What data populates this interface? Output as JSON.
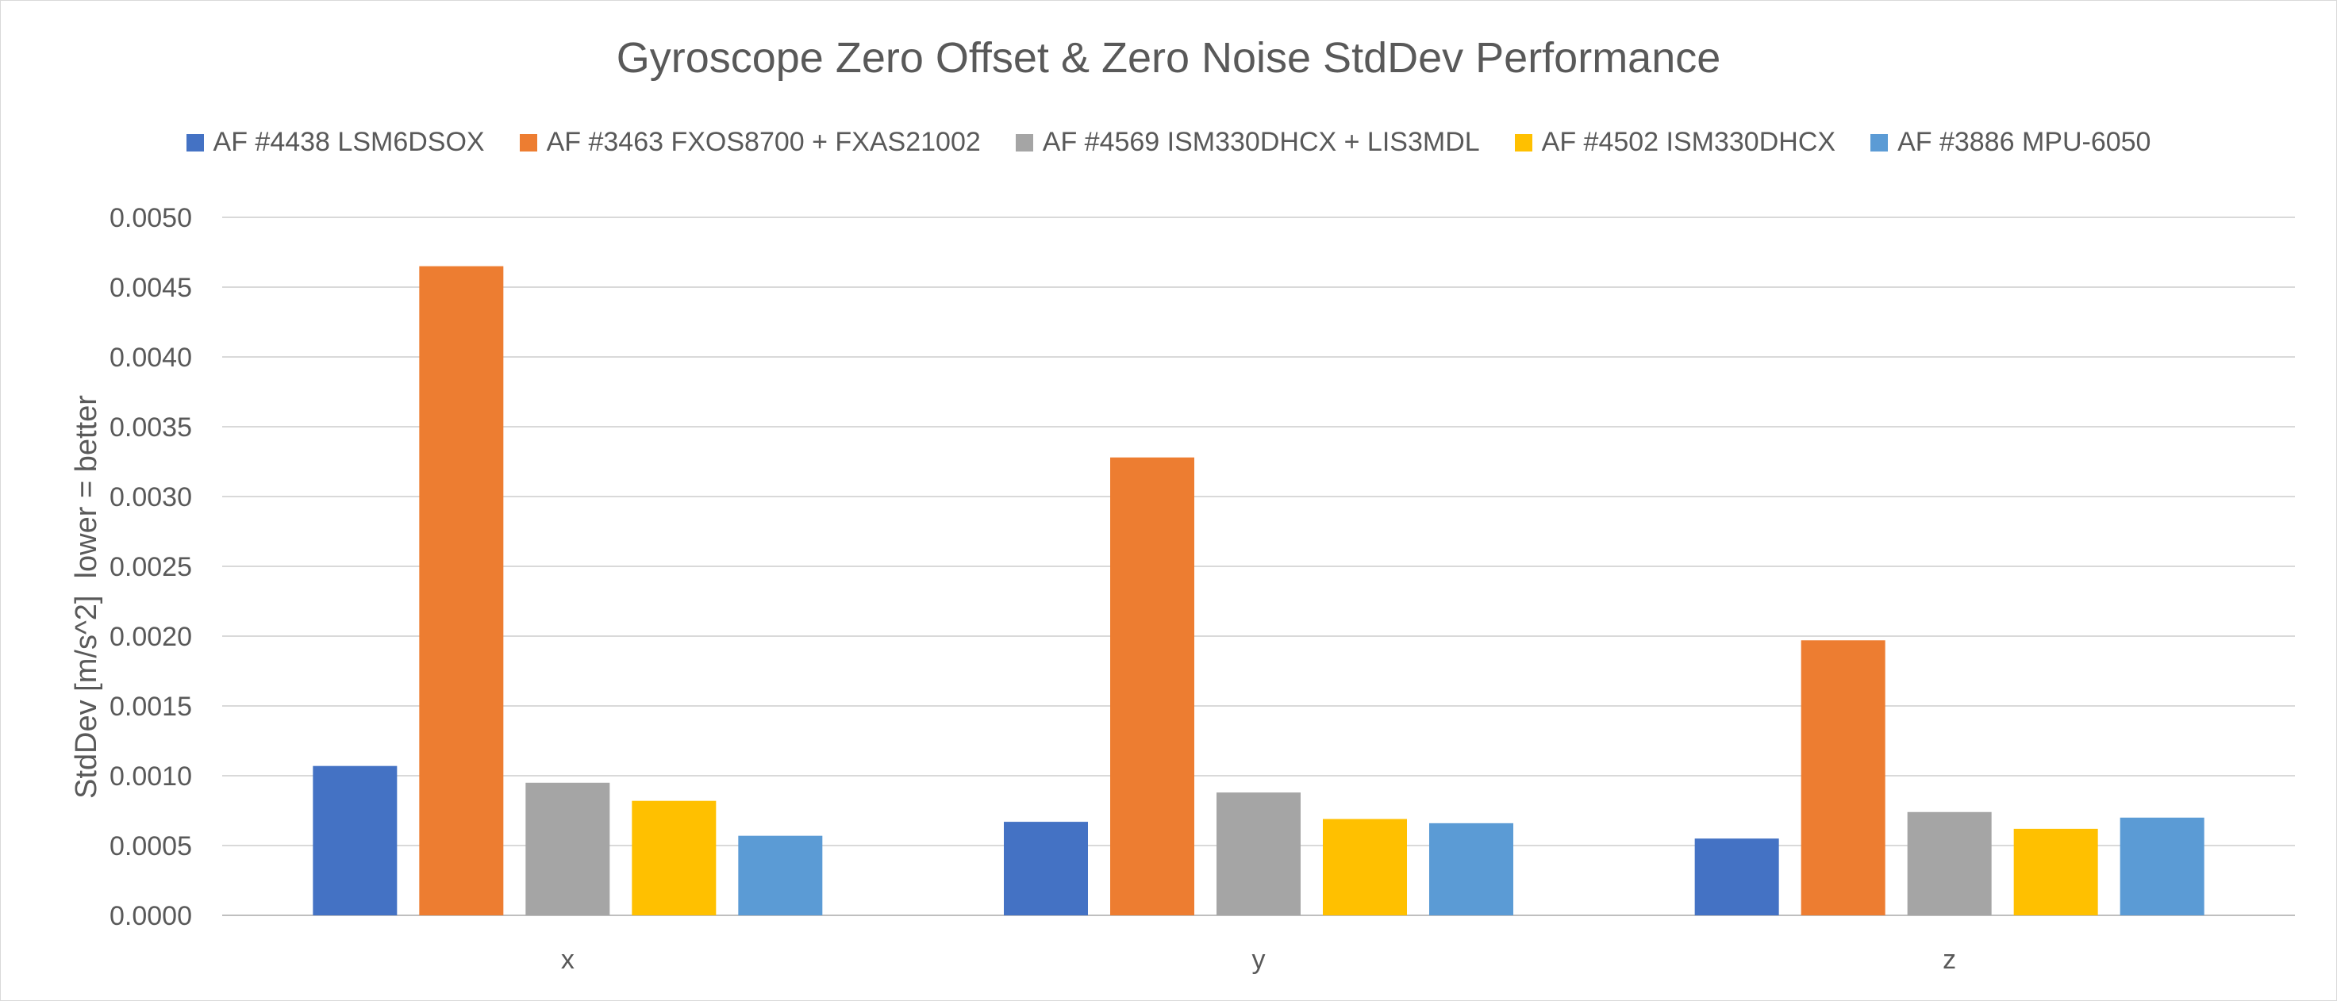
{
  "chart_data": {
    "type": "bar",
    "title": "Gyroscope Zero Offset & Zero Noise StdDev Performance",
    "xlabel": "",
    "ylabel": "StdDev [m/s^2]  lower = better",
    "categories": [
      "x",
      "y",
      "z"
    ],
    "ylim": [
      0,
      0.005
    ],
    "yticks": [
      "0.0000",
      "0.0005",
      "0.0010",
      "0.0015",
      "0.0020",
      "0.0025",
      "0.0030",
      "0.0035",
      "0.0040",
      "0.0045",
      "0.0050"
    ],
    "grid": true,
    "legend_position": "top",
    "series": [
      {
        "name": "AF #4438 LSM6DSOX",
        "color": "#4472c4",
        "values": [
          0.00107,
          0.00067,
          0.00055
        ]
      },
      {
        "name": "AF #3463 FXOS8700 + FXAS21002",
        "color": "#ed7d31",
        "values": [
          0.00465,
          0.00328,
          0.00197
        ]
      },
      {
        "name": "AF #4569 ISM330DHCX + LIS3MDL",
        "color": "#a5a5a5",
        "values": [
          0.00095,
          0.00088,
          0.00074
        ]
      },
      {
        "name": "AF #4502 ISM330DHCX",
        "color": "#ffc000",
        "values": [
          0.00082,
          0.00069,
          0.00062
        ]
      },
      {
        "name": "AF #3886 MPU-6050",
        "color": "#5b9bd5",
        "values": [
          0.00057,
          0.00066,
          0.0007
        ]
      }
    ]
  }
}
